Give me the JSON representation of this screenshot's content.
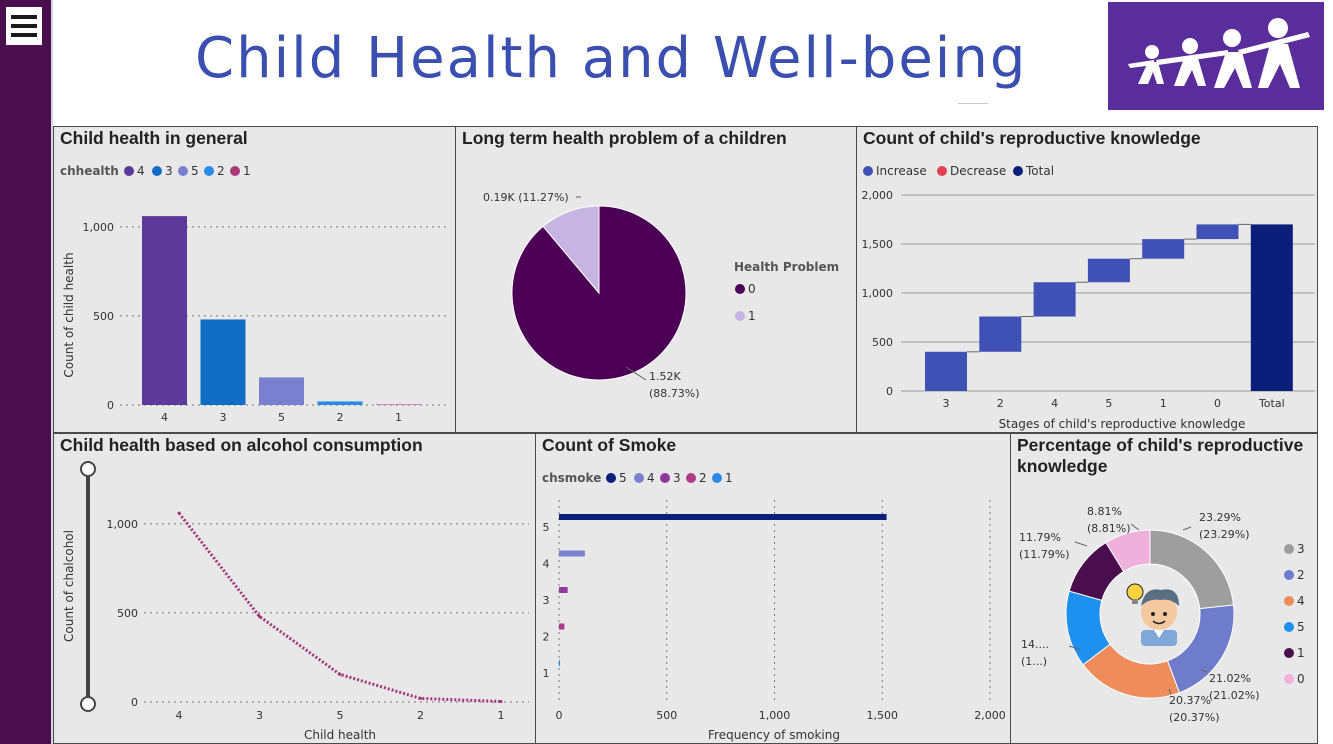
{
  "header": {
    "title": "Child Health and Well-being"
  },
  "colors": {
    "purple": "#4b0055",
    "blue_dark": "#0b1e7a",
    "blue": "#3f51b5"
  },
  "panels": {
    "p1": {
      "title": "Child health in general",
      "legend_label": "chhealth",
      "legend": [
        {
          "name": "4",
          "color": "#5b3a9a"
        },
        {
          "name": "3",
          "color": "#116cc4"
        },
        {
          "name": "5",
          "color": "#7a80d0"
        },
        {
          "name": "2",
          "color": "#2a8ae8"
        },
        {
          "name": "1",
          "color": "#a83a7a"
        }
      ],
      "ylabel": "Count of child health",
      "yticks": [
        "0",
        "500",
        "1,000"
      ]
    },
    "p2": {
      "title": "Long term health problem of a children",
      "legend_label": "Health Problem",
      "legend": [
        {
          "name": "0",
          "color": "#4b0055"
        },
        {
          "name": "1",
          "color": "#c6b4e3"
        }
      ],
      "label_small": "0.19K (11.27%)",
      "label_large_1": "1.52K",
      "label_large_2": "(88.73%)"
    },
    "p3": {
      "title": "Count of child's reproductive knowledge",
      "legend": [
        {
          "name": "Increase",
          "color": "#3f51b5"
        },
        {
          "name": "Decrease",
          "color": "#e04050"
        },
        {
          "name": "Total",
          "color": "#0b1e7a"
        }
      ],
      "xlabel": "Stages of child's reproductive knowledge",
      "yticks": [
        "0",
        "500",
        "1,000",
        "1,500",
        "2,000"
      ]
    },
    "p4": {
      "title": "Child health based on alcohol consumption",
      "ylabel": "Count of chalcohol",
      "xlabel": "Child health",
      "yticks": [
        "0",
        "500",
        "1,000"
      ]
    },
    "p5": {
      "title": "Count of Smoke",
      "legend_label": "chsmoke",
      "legend": [
        {
          "name": "5",
          "color": "#0b1e7a"
        },
        {
          "name": "4",
          "color": "#7a80d0"
        },
        {
          "name": "3",
          "color": "#8e3a9a"
        },
        {
          "name": "2",
          "color": "#b03a8a"
        },
        {
          "name": "1",
          "color": "#2a8ae8"
        }
      ],
      "xlabel": "Frequency of smoking",
      "xticks": [
        "0",
        "500",
        "1,000",
        "1,500",
        "2,000"
      ]
    },
    "p6": {
      "title_1": "Percentage of child's reproductive",
      "title_2": "knowledge",
      "legend": [
        {
          "name": "3",
          "color": "#9e9e9e"
        },
        {
          "name": "2",
          "color": "#6f7ccc"
        },
        {
          "name": "4",
          "color": "#ee8c5c"
        },
        {
          "name": "5",
          "color": "#1e90f0"
        },
        {
          "name": "1",
          "color": "#4a0e4e"
        },
        {
          "name": "0",
          "color": "#f0b0dc"
        }
      ]
    }
  },
  "chart_data": [
    {
      "type": "bar",
      "title": "Child health in general",
      "categories": [
        "4",
        "3",
        "5",
        "2",
        "1"
      ],
      "values": [
        1060,
        480,
        155,
        20,
        3
      ],
      "ylabel": "Count of child health",
      "ylim": [
        0,
        1100
      ],
      "grid": true,
      "legend_position": "top-left"
    },
    {
      "type": "pie",
      "title": "Long term health problem of a children",
      "labels": [
        "0",
        "1"
      ],
      "values": [
        1520,
        190
      ],
      "percent": [
        88.73,
        11.27
      ],
      "legend_position": "right"
    },
    {
      "type": "bar",
      "subtype": "waterfall",
      "title": "Count of child's reproductive knowledge",
      "categories": [
        "3",
        "2",
        "4",
        "5",
        "1",
        "0",
        "Total"
      ],
      "values": [
        400,
        360,
        350,
        240,
        200,
        150,
        1700
      ],
      "xlabel": "Stages of child's reproductive knowledge",
      "ylim": [
        0,
        2000
      ],
      "grid": true,
      "legend_position": "top-left"
    },
    {
      "type": "line",
      "title": "Child health based on alcohol consumption",
      "categories": [
        "4",
        "3",
        "5",
        "2",
        "1"
      ],
      "values": [
        1060,
        480,
        155,
        20,
        3
      ],
      "xlabel": "Child health",
      "ylabel": "Count of chalcohol",
      "ylim": [
        0,
        1100
      ],
      "grid": true
    },
    {
      "type": "bar",
      "orientation": "horizontal",
      "title": "Count of Smoke",
      "categories": [
        "5",
        "4",
        "3",
        "2",
        "1"
      ],
      "values": [
        1520,
        120,
        40,
        25,
        5
      ],
      "xlabel": "Frequency of smoking",
      "xlim": [
        0,
        2000
      ],
      "grid": true,
      "legend_position": "top-left"
    },
    {
      "type": "pie",
      "subtype": "donut",
      "title": "Percentage of child's reproductive knowledge",
      "labels": [
        "3",
        "2",
        "4",
        "5",
        "1",
        "0"
      ],
      "percent": [
        23.29,
        21.02,
        20.37,
        14.72,
        11.79,
        8.81
      ],
      "data_labels": [
        "23.29%",
        "(23.29%)",
        "21.02%",
        "(21.02%)",
        "20.37%",
        "(20.37%)",
        "14....",
        "(1...)",
        "11.79%",
        "(11.79%)",
        "8.81%",
        "(8.81%)"
      ],
      "legend_position": "right"
    }
  ]
}
